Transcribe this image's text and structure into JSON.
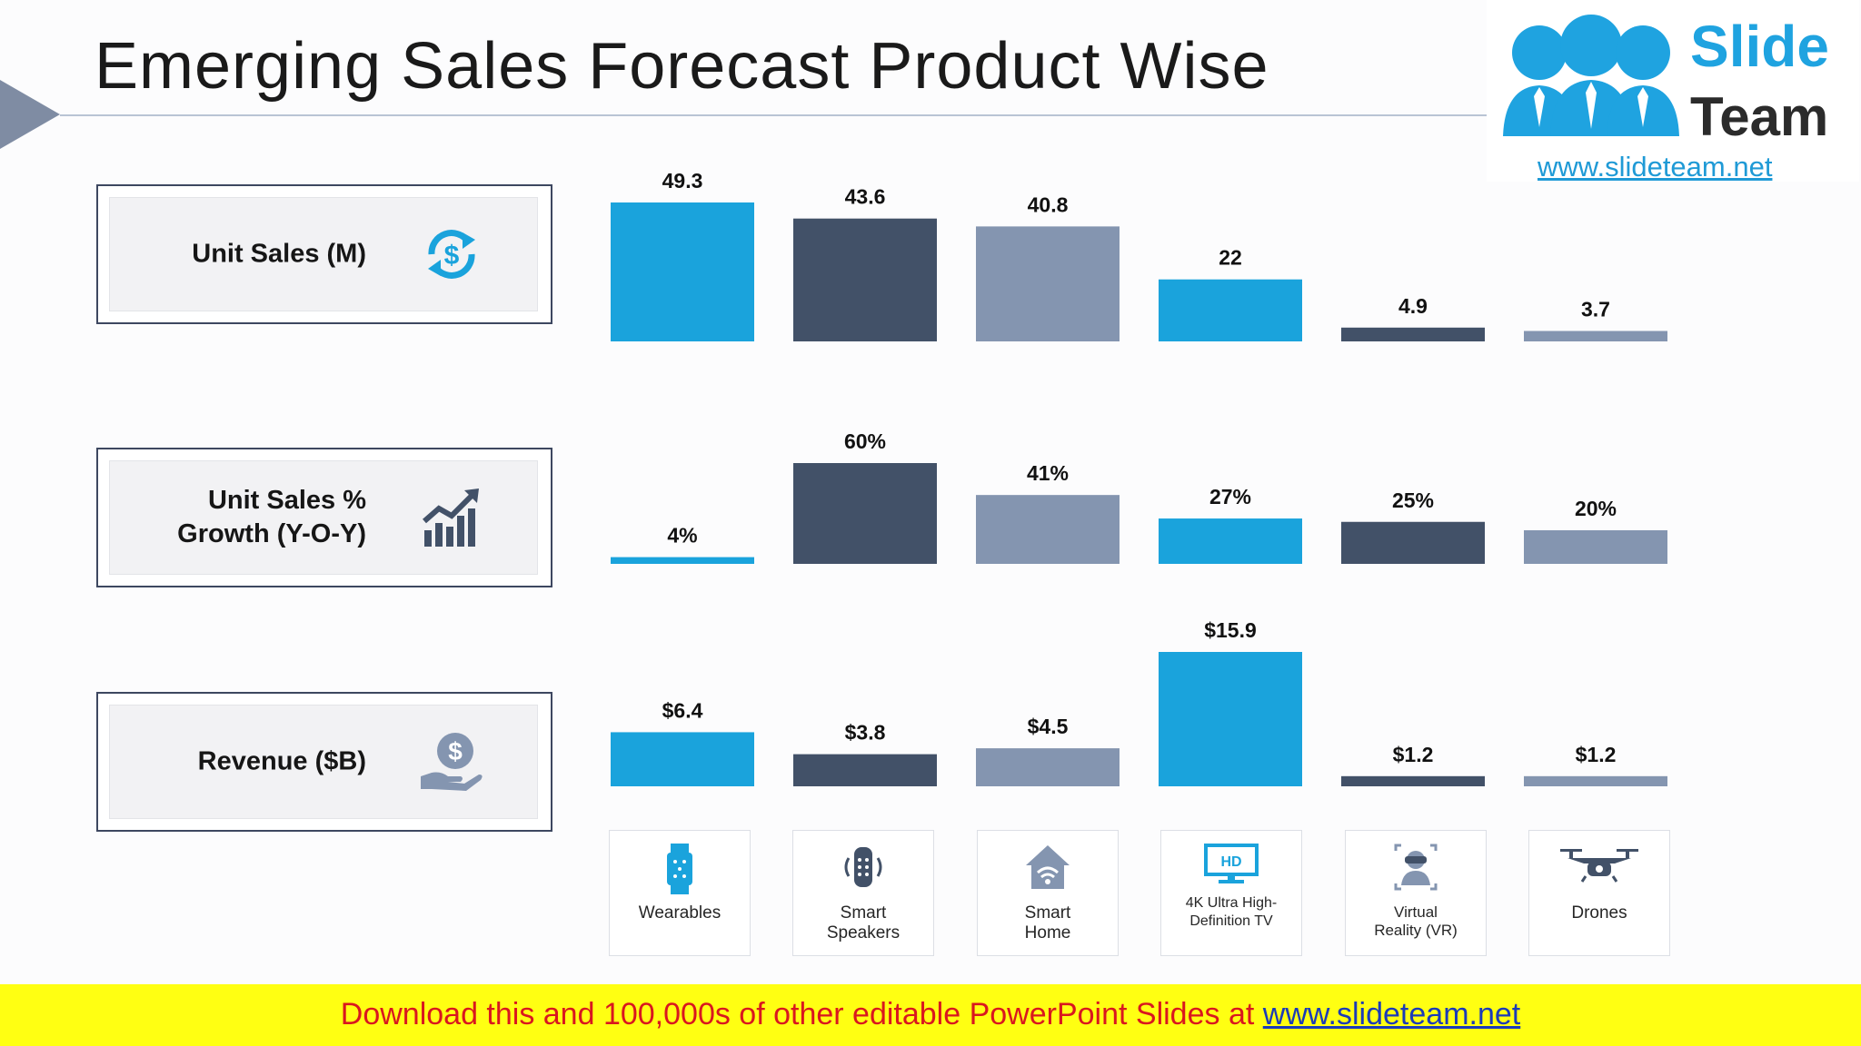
{
  "title": "Emerging Sales Forecast Product Wise",
  "logo": {
    "line1": "Slide",
    "line2": "Team",
    "url": "www.slideteam.net"
  },
  "rows": [
    {
      "label": "Unit Sales (M)",
      "label_line2": "",
      "icon": "dollar-refresh-icon"
    },
    {
      "label": "Unit Sales %",
      "label_line2": "Growth (Y-O-Y)",
      "icon": "growth-chart-icon"
    },
    {
      "label": "Revenue ($B)",
      "label_line2": "",
      "icon": "money-hand-icon"
    }
  ],
  "products": [
    {
      "name": "Wearables",
      "icon": "smartwatch-icon"
    },
    {
      "name": "Smart Speakers",
      "icon": "speaker-icon"
    },
    {
      "name": "Smart Home",
      "icon": "smart-home-icon"
    },
    {
      "name": "4K Ultra High-Definition TV",
      "icon": "hd-tv-icon"
    },
    {
      "name": "Virtual Reality (VR)",
      "icon": "vr-headset-icon"
    },
    {
      "name": "Drones",
      "icon": "drone-icon"
    }
  ],
  "colors": [
    "#1aa3dc",
    "#425168",
    "#8495b0"
  ],
  "chart_data": [
    {
      "type": "bar",
      "title": "Unit Sales (M)",
      "categories": [
        "Wearables",
        "Smart Speakers",
        "Smart Home",
        "4K Ultra High-Definition TV",
        "Virtual Reality (VR)",
        "Drones"
      ],
      "values": [
        49.3,
        43.6,
        40.8,
        22,
        4.9,
        3.7
      ],
      "data_labels": [
        "49.3",
        "43.6",
        "40.8",
        "22",
        "4.9",
        "3.7"
      ]
    },
    {
      "type": "bar",
      "title": "Unit Sales % Growth (Y-O-Y)",
      "categories": [
        "Wearables",
        "Smart Speakers",
        "Smart Home",
        "4K Ultra High-Definition TV",
        "Virtual Reality (VR)",
        "Drones"
      ],
      "values": [
        4,
        60,
        41,
        27,
        25,
        20
      ],
      "data_labels": [
        "4%",
        "60%",
        "41%",
        "27%",
        "25%",
        "20%"
      ]
    },
    {
      "type": "bar",
      "title": "Revenue ($B)",
      "categories": [
        "Wearables",
        "Smart Speakers",
        "Smart Home",
        "4K Ultra High-Definition TV",
        "Virtual Reality (VR)",
        "Drones"
      ],
      "values": [
        6.4,
        3.8,
        4.5,
        15.9,
        1.2,
        1.2
      ],
      "data_labels": [
        "$6.4",
        "$3.8",
        "$4.5",
        "$15.9",
        "$1.2",
        "$1.2"
      ]
    }
  ],
  "banner": {
    "text": "Download this and 100,000s of other editable PowerPoint Slides at ",
    "link": "www.slideteam.net"
  }
}
